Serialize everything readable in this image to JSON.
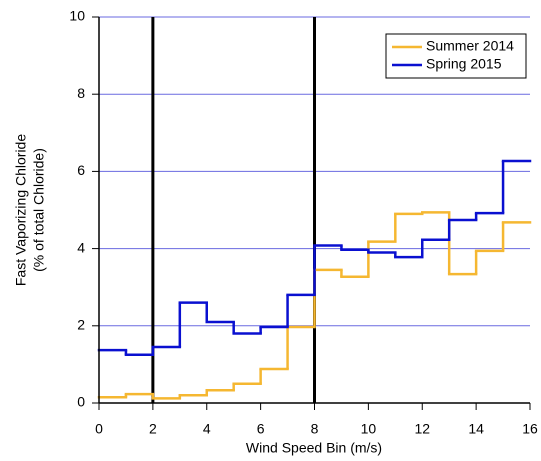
{
  "chart_data": {
    "type": "step",
    "xlabel": "Wind Speed Bin (m/s)",
    "ylabel": [
      "Fast Vaporizing Chloride",
      "(% of total Chloride)"
    ],
    "x": [
      0,
      1,
      2,
      3,
      4,
      5,
      6,
      7,
      8,
      9,
      10,
      11,
      12,
      13,
      14,
      15
    ],
    "series": [
      {
        "name": "Summer 2014",
        "color": "#f5b731",
        "values": [
          0.15,
          0.23,
          0.12,
          0.2,
          0.33,
          0.5,
          0.88,
          1.97,
          3.45,
          3.27,
          4.18,
          4.9,
          4.94,
          3.34,
          3.94,
          4.68
        ]
      },
      {
        "name": "Spring 2015",
        "color": "#0a10d0",
        "values": [
          1.37,
          1.25,
          1.45,
          2.6,
          2.1,
          1.8,
          1.97,
          2.8,
          4.08,
          3.97,
          3.9,
          3.78,
          4.23,
          4.74,
          4.92,
          6.27
        ]
      }
    ],
    "vlines": [
      2,
      8
    ],
    "xlim": [
      0,
      16
    ],
    "xticks": [
      0,
      2,
      4,
      6,
      8,
      10,
      12,
      14,
      16
    ],
    "ylim": [
      0,
      10
    ],
    "yticks": [
      0,
      2,
      4,
      6,
      8,
      10
    ],
    "grid": true,
    "grid_color": "#6a6ae0",
    "legend": "upper right"
  }
}
